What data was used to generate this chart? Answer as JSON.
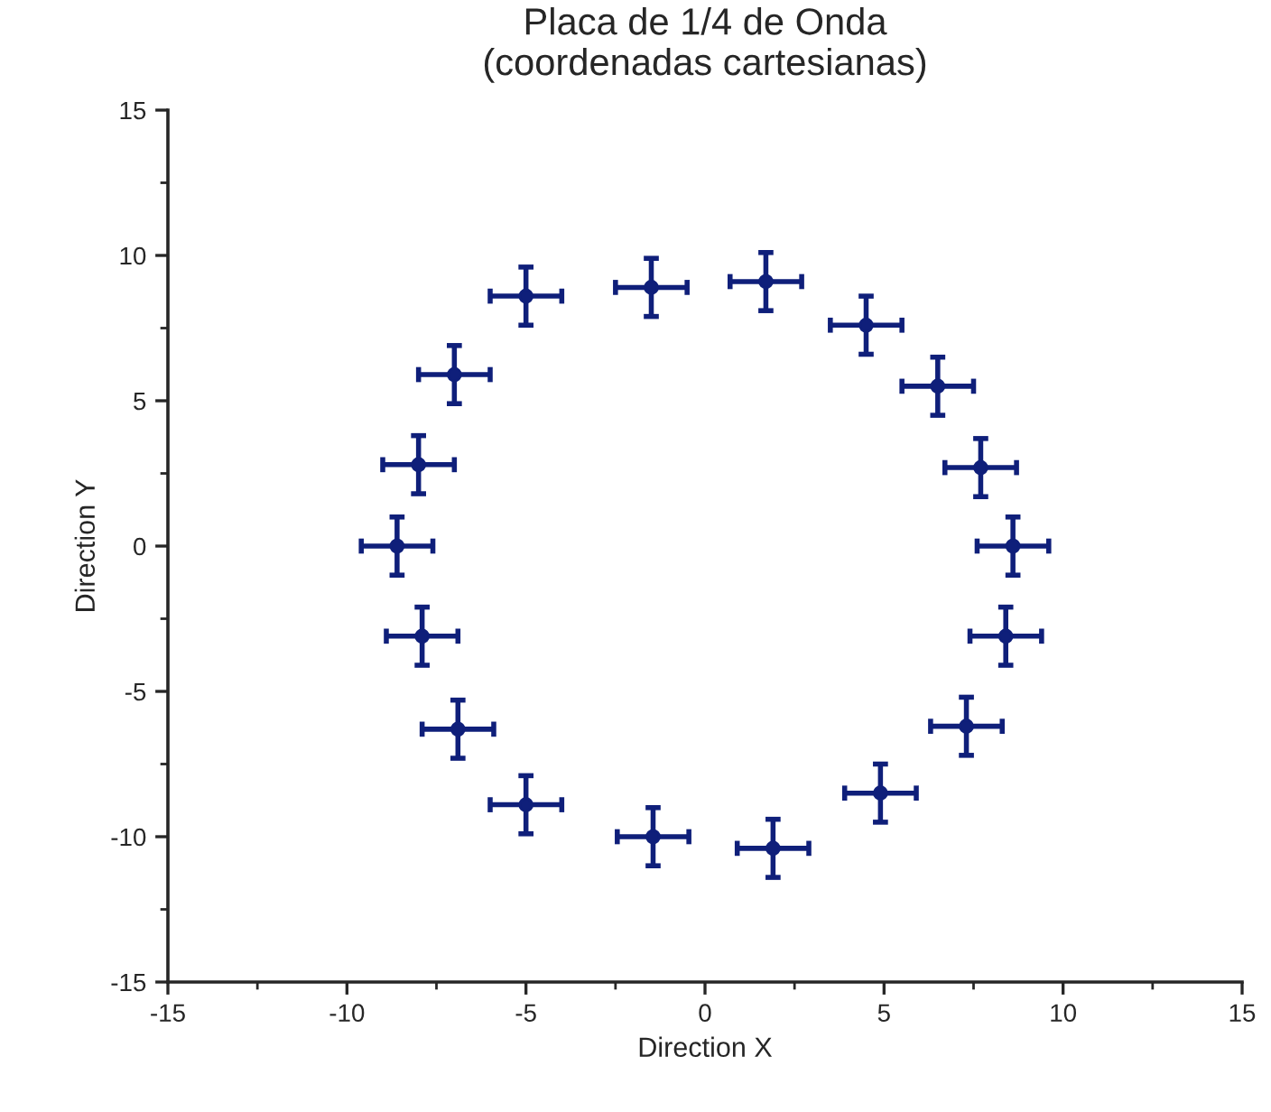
{
  "chart_data": {
    "type": "scatter",
    "title": "Placa de 1/4 de Onda\n(coordenadas cartesianas)",
    "xlabel": "Direction X",
    "ylabel": "Direction Y",
    "x": [
      -8.6,
      -8.0,
      -7.0,
      -5.0,
      -1.5,
      1.7,
      4.5,
      6.5,
      7.7,
      8.6,
      8.4,
      7.3,
      4.9,
      1.9,
      -1.45,
      -5.0,
      -6.9,
      -7.9
    ],
    "series": [
      {
        "color": "#0f1f7a",
        "values": [
          0,
          2.8,
          5.9,
          8.6,
          8.9,
          9.1,
          7.6,
          5.5,
          2.7,
          0,
          -3.1,
          -6.2,
          -8.5,
          -10.4,
          -10.0,
          -8.9,
          -6.3,
          -3.1
        ],
        "errors": [
          1,
          1,
          1,
          1,
          1,
          1,
          1,
          1,
          1,
          1,
          1,
          1,
          1,
          1,
          1,
          1,
          1,
          1
        ],
        "xerrors": [
          1,
          1,
          1,
          1,
          1,
          1,
          1,
          1,
          1,
          1,
          1,
          1,
          1,
          1,
          1,
          1,
          1,
          1
        ]
      }
    ],
    "marker": "circle",
    "xlim": [
      -15,
      15
    ],
    "ylim": [
      -15,
      15
    ],
    "xticks": [
      -15,
      {
        "value": -12.5,
        "label": null
      },
      -10,
      {
        "value": -7.5,
        "label": null
      },
      -5,
      {
        "value": -2.5,
        "label": null
      },
      0,
      {
        "value": 2.5,
        "label": null
      },
      5,
      {
        "value": 7.5,
        "label": null
      },
      10,
      {
        "value": 12.5,
        "label": null
      },
      15
    ],
    "yticks": [
      -15,
      {
        "value": -12.5,
        "label": null
      },
      -10,
      {
        "value": -7.5,
        "label": null
      },
      -5,
      {
        "value": -2.5,
        "label": null
      },
      0,
      {
        "value": 2.5,
        "label": null
      },
      5,
      {
        "value": 7.5,
        "label": null
      },
      10,
      {
        "value": 12.5,
        "label": null
      },
      15
    ],
    "grid": false
  }
}
